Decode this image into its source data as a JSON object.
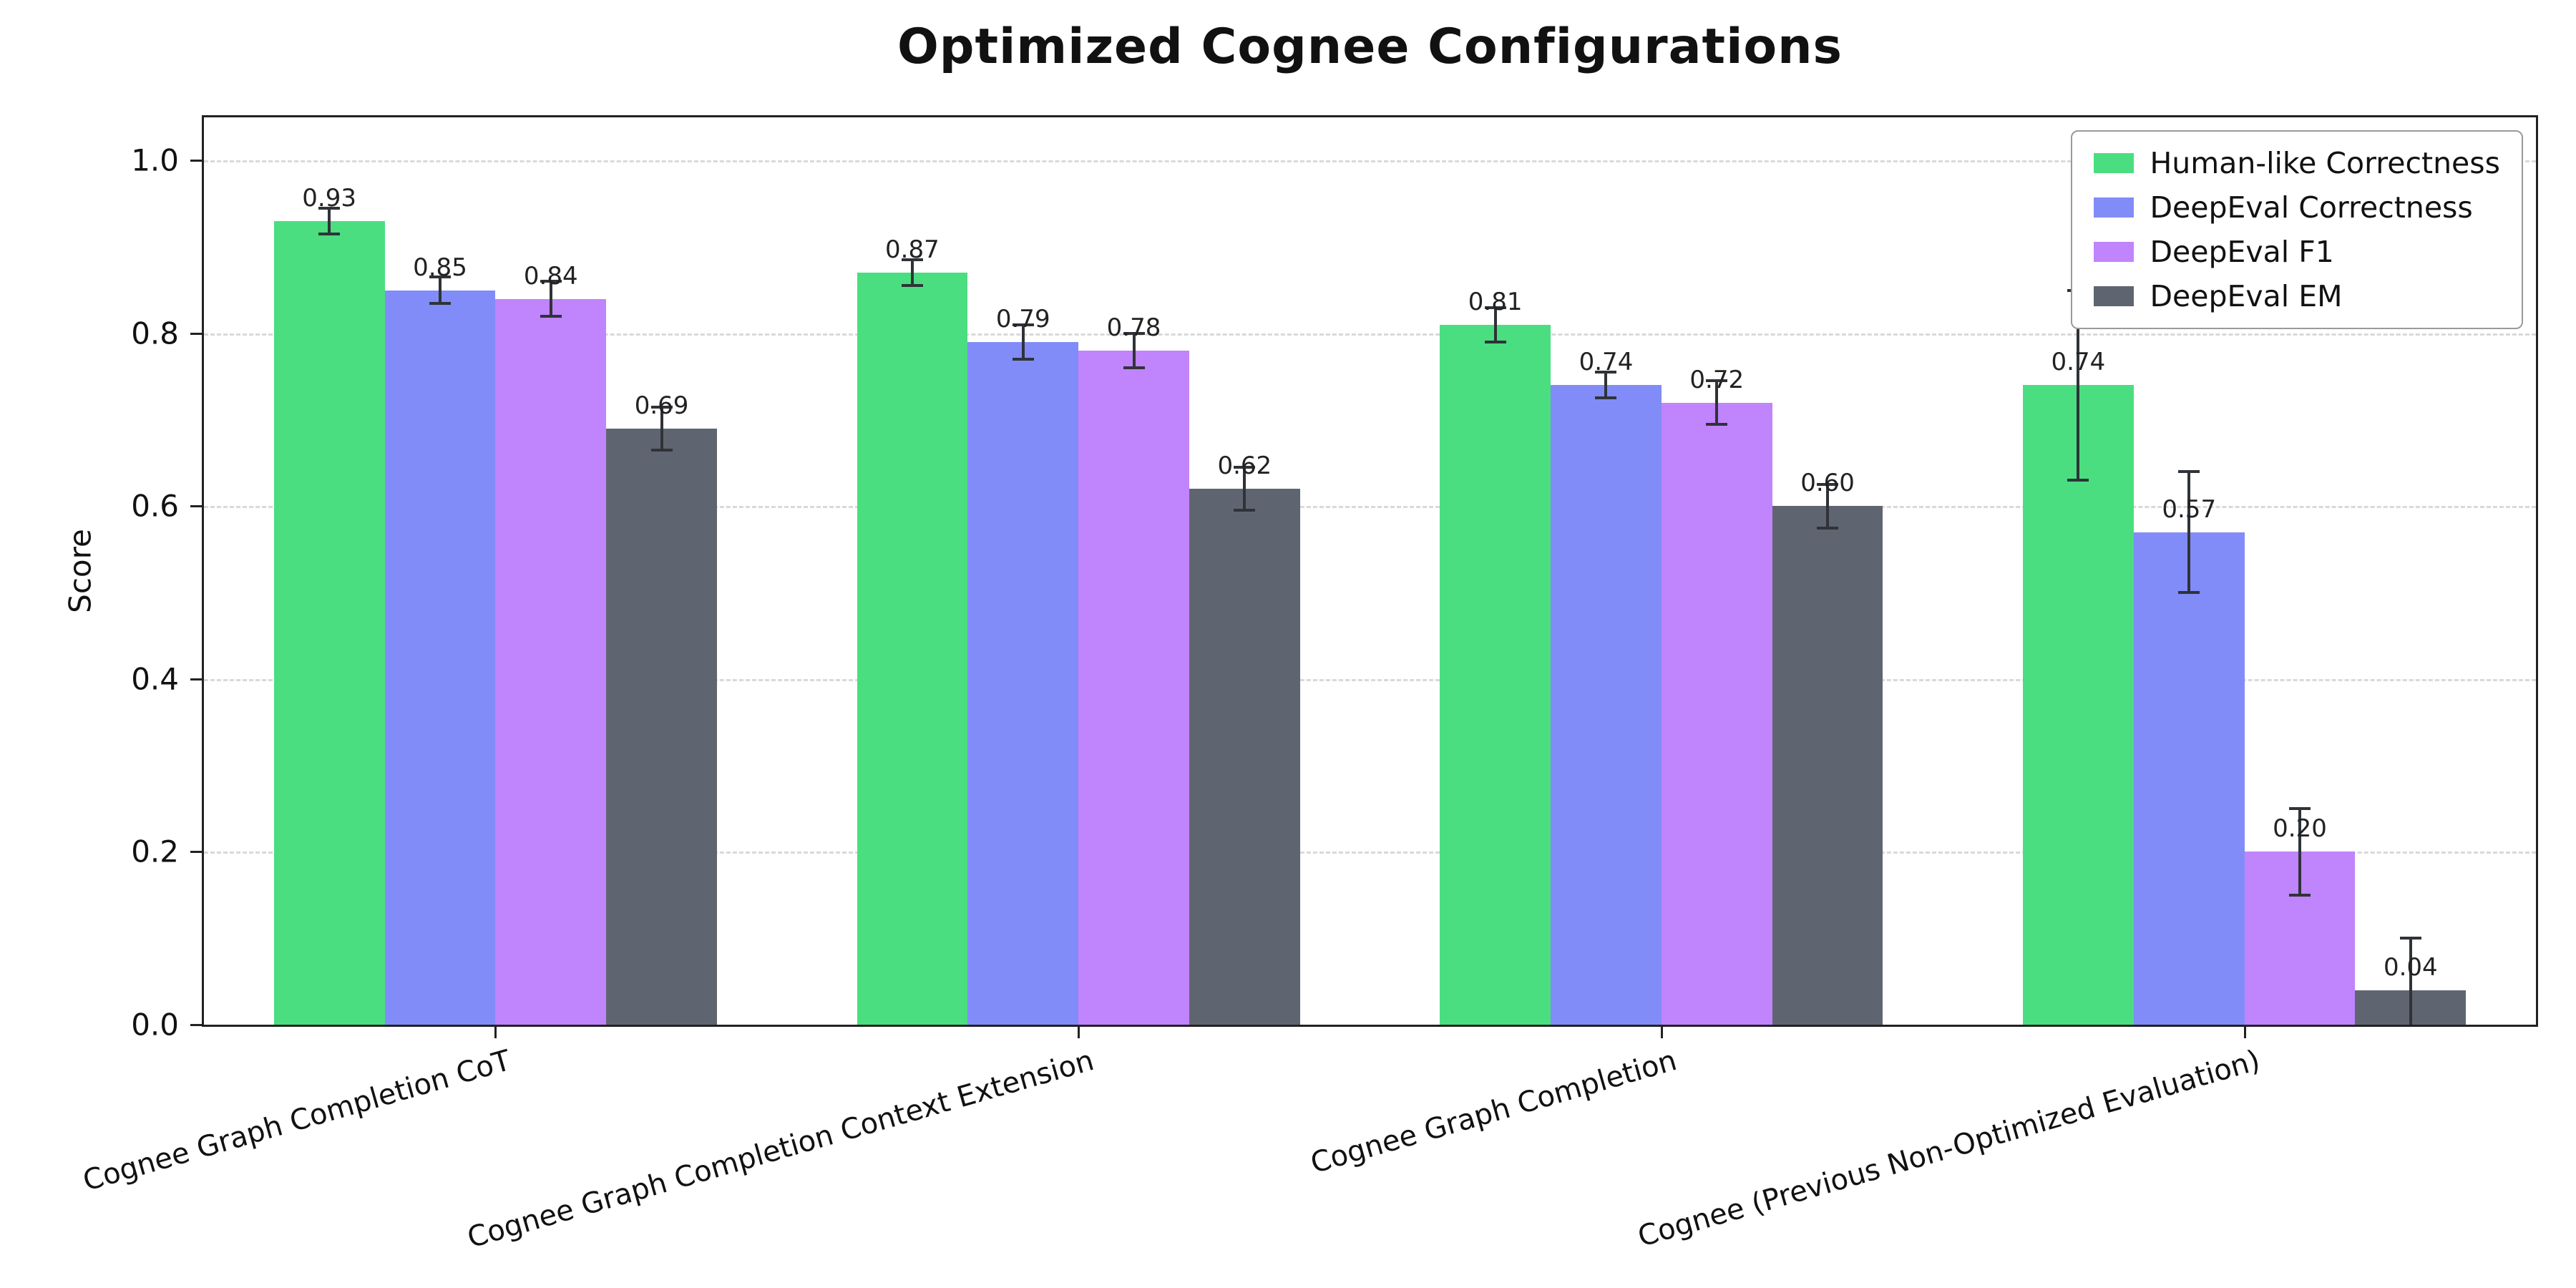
{
  "chart_data": {
    "type": "bar",
    "title": "Optimized Cognee Configurations",
    "xlabel": "",
    "ylabel": "Score",
    "ylim": [
      0,
      1.05
    ],
    "yticks": [
      0,
      0.2,
      0.4,
      0.6,
      0.8,
      1.0
    ],
    "grid": "horizontal dashed",
    "legend_position": "upper right",
    "error_bars": true,
    "value_labels": true,
    "categories": [
      "Cognee Graph Completion CoT",
      "Cognee Graph Completion Context Extension",
      "Cognee Graph Completion",
      "Cognee (Previous Non-Optimized Evaluation)"
    ],
    "series": [
      {
        "name": "Human-like Correctness",
        "color": "#4ade80",
        "values": [
          0.93,
          0.87,
          0.81,
          0.74
        ],
        "errors": [
          0.015,
          0.015,
          0.02,
          0.11
        ]
      },
      {
        "name": "DeepEval Correctness",
        "color": "#818cf8",
        "values": [
          0.85,
          0.79,
          0.74,
          0.57
        ],
        "errors": [
          0.015,
          0.02,
          0.015,
          0.07
        ]
      },
      {
        "name": "DeepEval F1",
        "color": "#c084fc",
        "values": [
          0.84,
          0.78,
          0.72,
          0.2
        ],
        "errors": [
          0.02,
          0.02,
          0.025,
          0.05
        ]
      },
      {
        "name": "DeepEval EM",
        "color": "#5f6570",
        "values": [
          0.69,
          0.62,
          0.6,
          0.04
        ],
        "errors": [
          0.025,
          0.025,
          0.025,
          0.06
        ]
      }
    ]
  },
  "colors": {
    "background": "#ffffff",
    "axis": "#222222",
    "grid": "#d9d9d9",
    "error_bar": "#2f3338",
    "legend_border": "#9a9a9a"
  }
}
